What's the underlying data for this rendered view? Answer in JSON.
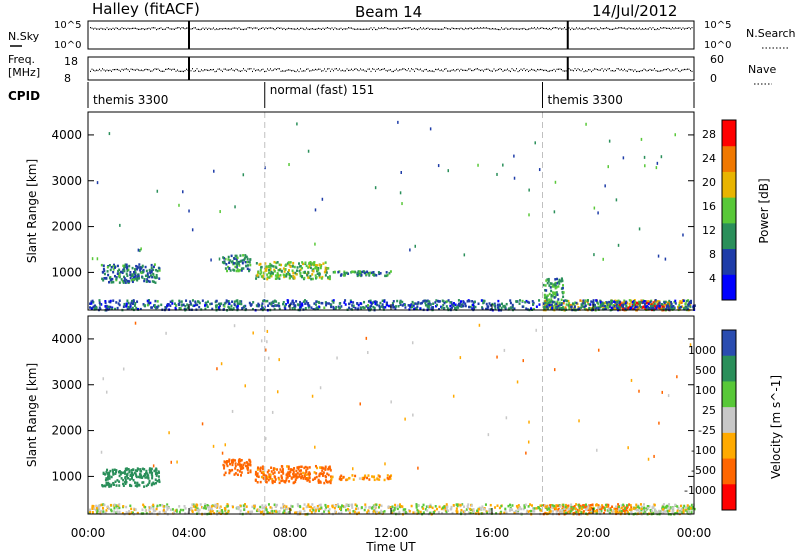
{
  "header": {
    "station": "Halley (fitACF)",
    "beam": "Beam 14",
    "date": "14/Jul/2012"
  },
  "nsky_panel": {
    "left_label": "N.Sky",
    "ticks": [
      "10^5",
      "10^0"
    ],
    "right_label": "N.Search",
    "right_ticks": [
      "10^5",
      "10^0"
    ]
  },
  "freq_panel": {
    "left_label_line1": "Freq.",
    "left_label_line2": "[MHz]",
    "ticks": [
      "18",
      "8"
    ],
    "right_label": "Nave",
    "right_ticks": [
      "60",
      "0"
    ]
  },
  "cpid": {
    "label": "CPID",
    "segments": [
      {
        "start_hour": 0.0,
        "name": "themis 3300"
      },
      {
        "start_hour": 7.0,
        "name": "normal (fast) 151"
      },
      {
        "start_hour": 18.0,
        "name": "themis 3300"
      }
    ]
  },
  "colors": {
    "power_scale": [
      "#0000ff",
      "#1e3ca8",
      "#2a8f5a",
      "#58c838",
      "#e8b400",
      "#f07800",
      "#ff0000"
    ],
    "velocity_scale": [
      "#ff0000",
      "#ff6600",
      "#ffaa00",
      "#c8c8c8",
      "#58c838",
      "#2a8f5a",
      "#2a4cb0"
    ],
    "dashed_marker": "#c0c0c0"
  },
  "markers": {
    "vertical_lines_hours": [
      4.0,
      19.0
    ],
    "dashed_lines_hours": [
      7.0,
      18.0
    ]
  },
  "chart_data": [
    {
      "type": "heatmap",
      "name": "power-panel",
      "ylabel": "Slant Range [km]",
      "yticks": [
        "4000",
        "3000",
        "2000",
        "1000"
      ],
      "ylim": [
        180,
        4500
      ],
      "xlim_hours": [
        0,
        24
      ],
      "colorbar_label": "Power [dB]",
      "colorbar_ticks": [
        "28",
        "24",
        "20",
        "16",
        "12",
        "8",
        "4"
      ],
      "colorbar_range": [
        0,
        30
      ],
      "regions": [
        {
          "t0": 5.3,
          "t1": 6.4,
          "r0": 1050,
          "r1": 1400,
          "value": 10
        },
        {
          "t0": 6.6,
          "t1": 9.6,
          "r0": 880,
          "r1": 1250,
          "value": 14
        },
        {
          "t0": 9.6,
          "t1": 11.4,
          "r0": 950,
          "r1": 1050,
          "value": 11
        },
        {
          "t0": 10.6,
          "t1": 12.0,
          "r0": 950,
          "r1": 1050,
          "value": 10
        },
        {
          "t0": 0.5,
          "t1": 2.8,
          "r0": 800,
          "r1": 1200,
          "value": 9
        },
        {
          "t0": 18.0,
          "t1": 24.0,
          "r0": 200,
          "r1": 420,
          "value": 18
        },
        {
          "t0": 21.0,
          "t1": 23.0,
          "r0": 200,
          "r1": 380,
          "value": 27
        },
        {
          "t0": 18.0,
          "t1": 18.8,
          "r0": 420,
          "r1": 900,
          "value": 12
        },
        {
          "t0": 0.0,
          "t1": 24.0,
          "r0": 200,
          "r1": 420,
          "value": 8
        }
      ]
    },
    {
      "type": "heatmap",
      "name": "velocity-panel",
      "ylabel": "Slant Range [km]",
      "yticks": [
        "4000",
        "3000",
        "2000",
        "1000"
      ],
      "ylim": [
        180,
        4500
      ],
      "xlim_hours": [
        0,
        24
      ],
      "xticks": [
        "00:00",
        "04:00",
        "08:00",
        "12:00",
        "16:00",
        "20:00",
        "00:00"
      ],
      "xlabel": "Time UT",
      "colorbar_label": "Velocity [m s^-1]",
      "colorbar_ticks": [
        "1000",
        "500",
        "100",
        "25",
        "-25",
        "-100",
        "-500",
        "-1000"
      ],
      "regions": [
        {
          "t0": 5.3,
          "t1": 6.4,
          "r0": 1050,
          "r1": 1400,
          "value": -300
        },
        {
          "t0": 6.6,
          "t1": 9.6,
          "r0": 880,
          "r1": 1250,
          "value": -150
        },
        {
          "t0": 9.6,
          "t1": 12.0,
          "r0": 950,
          "r1": 1050,
          "value": -80
        },
        {
          "t0": 0.5,
          "t1": 2.8,
          "r0": 800,
          "r1": 1200,
          "value": 200
        },
        {
          "t0": 18.0,
          "t1": 21.5,
          "r0": 200,
          "r1": 420,
          "value": -120
        },
        {
          "t0": 21.5,
          "t1": 24.0,
          "r0": 200,
          "r1": 360,
          "value": 40
        },
        {
          "t0": 0.0,
          "t1": 24.0,
          "r0": 200,
          "r1": 420,
          "value": 0
        }
      ]
    }
  ]
}
